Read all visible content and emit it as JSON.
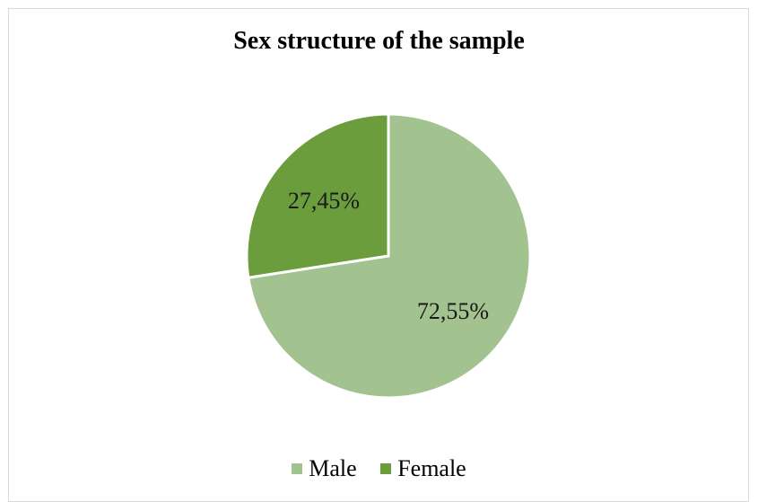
{
  "chart_data": {
    "type": "pie",
    "title": "Sex structure of the sample",
    "slices": [
      {
        "name": "Male",
        "value": 72.55,
        "label": "72,55%",
        "color": "#a2c38f"
      },
      {
        "name": "Female",
        "value": 27.45,
        "label": "27,45%",
        "color": "#6b9d3c"
      }
    ],
    "legend_position": "bottom"
  }
}
